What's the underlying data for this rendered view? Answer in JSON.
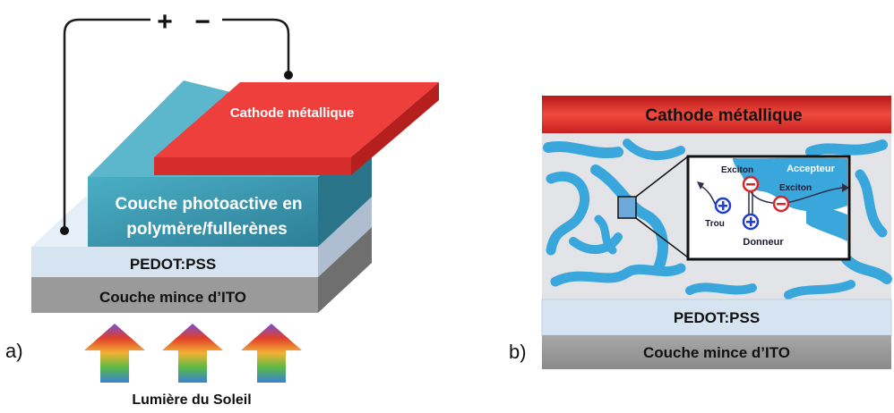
{
  "panel_a": {
    "tag": "a)",
    "polarity_plus": "+",
    "polarity_minus": "−",
    "layers": {
      "cathode": "Cathode métallique",
      "active_line1": "Couche photoactive en",
      "active_line2": "polymère/fullerènes",
      "pedot": "PEDOT:PSS",
      "ito": "Couche mince d’ITO"
    },
    "light_label": "Lumière du Soleil"
  },
  "panel_b": {
    "tag": "b)",
    "layers": {
      "cathode": "Cathode métallique",
      "pedot": "PEDOT:PSS",
      "ito": "Couche mince d’ITO"
    },
    "inset": {
      "acceptor": "Accepteur",
      "donor": "Donneur",
      "exciton_1": "Exciton",
      "exciton_2": "Exciton",
      "hole": "Trou"
    }
  },
  "colors": {
    "cathode_red": "#e8413f",
    "active_teal": "#3f9fb5",
    "pedot_lightblue": "#d6e4f2",
    "ito_gray": "#8c8c8c",
    "acceptor_blue": "#3aa7dc",
    "hole_blue": "#1f3fd1",
    "electron_red": "#d6262b"
  }
}
